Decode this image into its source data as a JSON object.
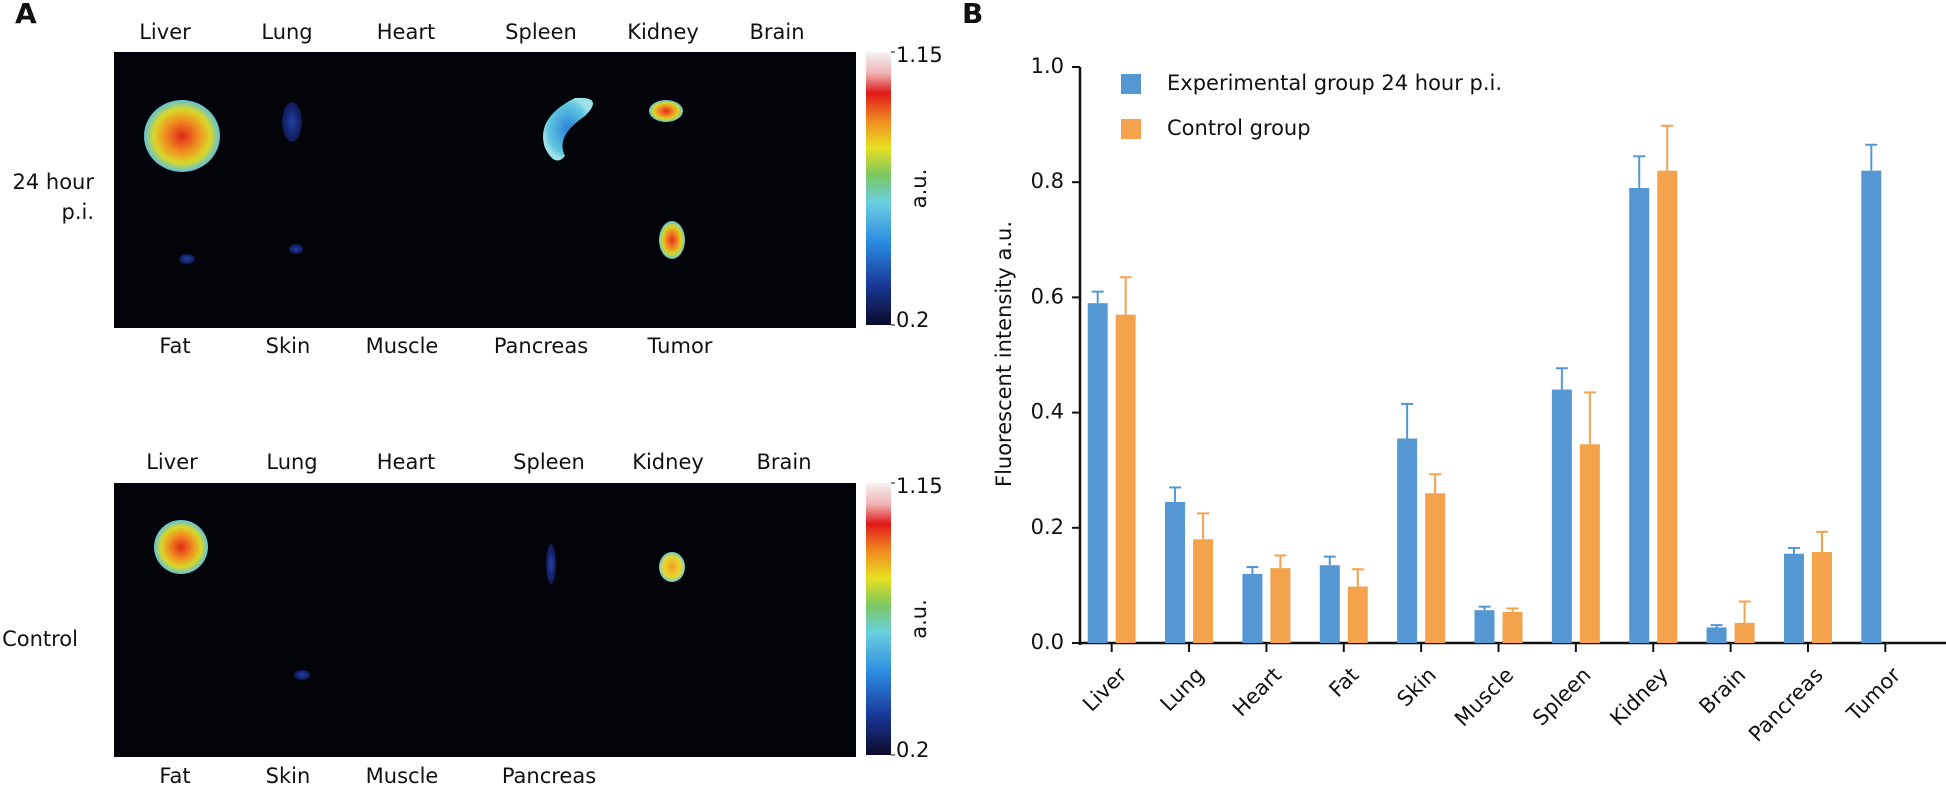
{
  "panel_a": {
    "label": "A",
    "groups": [
      {
        "row_label": "24 hour p.i.",
        "top_labels": [
          "Liver",
          "Lung",
          "Heart",
          "Spleen",
          "Kidney",
          "Brain"
        ],
        "bottom_labels": [
          "Fat",
          "Skin",
          "Muscle",
          "Pancreas",
          "Tumor"
        ],
        "colorbar": {
          "max": 1.15,
          "min": 0.2,
          "label": "a.u."
        }
      },
      {
        "row_label": "Control",
        "top_labels": [
          "Liver",
          "Lung",
          "Heart",
          "Spleen",
          "Kidney",
          "Brain"
        ],
        "bottom_labels": [
          "Fat",
          "Skin",
          "Muscle",
          "Pancreas"
        ],
        "colorbar": {
          "max": 1.15,
          "min": 0.2,
          "label": "a.u."
        }
      }
    ]
  },
  "chart_data": {
    "type": "bar",
    "panel_label": "B",
    "y_label": "Fluorescent intensity a.u.",
    "categories": [
      "Liver",
      "Lung",
      "Heart",
      "Fat",
      "Skin",
      "Muscle",
      "Spleen",
      "Kidney",
      "Brain",
      "Pancreas",
      "Tumor"
    ],
    "series": [
      {
        "name": "Experimental group 24 hour p.i.",
        "color": "#5597d3",
        "values": [
          0.59,
          0.245,
          0.12,
          0.135,
          0.355,
          0.057,
          0.44,
          0.79,
          0.027,
          0.155,
          0.82
        ],
        "errors": [
          0.02,
          0.025,
          0.012,
          0.015,
          0.06,
          0.006,
          0.037,
          0.055,
          0.004,
          0.01,
          0.045
        ]
      },
      {
        "name": "Control group",
        "color": "#f4a24c",
        "values": [
          0.57,
          0.18,
          0.13,
          0.098,
          0.26,
          0.054,
          0.345,
          0.82,
          0.035,
          0.158,
          null
        ],
        "errors": [
          0.065,
          0.045,
          0.022,
          0.03,
          0.033,
          0.006,
          0.09,
          0.078,
          0.037,
          0.035,
          null
        ]
      }
    ],
    "ylim": [
      0,
      1
    ],
    "yticks": [
      {
        "value": 0,
        "label": "0.0"
      },
      0.2,
      0.4,
      0.6,
      0.8,
      {
        "value": 1,
        "label": "1.0"
      }
    ]
  }
}
